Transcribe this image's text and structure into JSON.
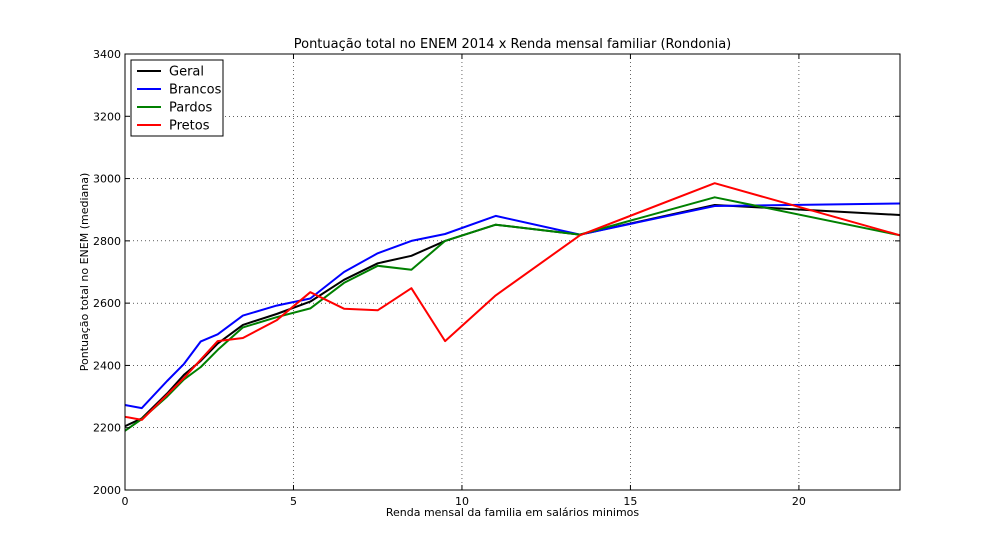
{
  "chart_data": {
    "type": "line",
    "title": "Pontuação total no ENEM 2014 x Renda mensal familiar (Rondonia)",
    "xlabel": "Renda mensal da familia em salários minimos",
    "ylabel": "Pontuação total no ENEM (mediana)",
    "xlim": [
      0,
      23
    ],
    "ylim": [
      2000,
      3400
    ],
    "xticks": [
      0,
      5,
      10,
      15,
      20
    ],
    "yticks": [
      2000,
      2200,
      2400,
      2600,
      2800,
      3000,
      3200,
      3400
    ],
    "grid": true,
    "legend_position": "top-left",
    "series": [
      {
        "name": "Geral",
        "color": "#000000",
        "x": [
          0,
          0.5,
          1.25,
          1.75,
          2.25,
          2.75,
          3.5,
          4.5,
          5.5,
          6.5,
          7.5,
          8.5,
          9.5,
          11,
          13.5,
          17.5,
          23
        ],
        "y": [
          2205,
          2230,
          2310,
          2370,
          2415,
          2470,
          2530,
          2565,
          2605,
          2675,
          2728,
          2752,
          2800,
          2852,
          2820,
          2915,
          2883
        ]
      },
      {
        "name": "Brancos",
        "color": "#0000ff",
        "x": [
          0,
          0.5,
          1.25,
          1.75,
          2.25,
          2.75,
          3.5,
          4.5,
          5.5,
          6.5,
          7.5,
          8.5,
          9.5,
          11,
          13.5,
          17.5,
          23
        ],
        "y": [
          2273,
          2263,
          2350,
          2405,
          2477,
          2500,
          2560,
          2592,
          2615,
          2700,
          2760,
          2800,
          2822,
          2880,
          2820,
          2912,
          2920
        ]
      },
      {
        "name": "Pardos",
        "color": "#008000",
        "x": [
          0,
          0.5,
          1.25,
          1.75,
          2.25,
          2.75,
          3.5,
          4.5,
          5.5,
          6.5,
          7.5,
          8.5,
          9.5,
          11,
          13.5,
          17.5,
          23
        ],
        "y": [
          2190,
          2228,
          2300,
          2355,
          2395,
          2450,
          2522,
          2555,
          2583,
          2665,
          2720,
          2707,
          2800,
          2852,
          2820,
          2940,
          2818
        ]
      },
      {
        "name": "Pretos",
        "color": "#ff0000",
        "x": [
          0,
          0.5,
          1.75,
          2.75,
          3.5,
          4.5,
          5.5,
          6.5,
          7.5,
          8.5,
          9.5,
          11,
          13.5,
          17.5,
          23
        ],
        "y": [
          2235,
          2225,
          2360,
          2478,
          2488,
          2545,
          2635,
          2582,
          2577,
          2648,
          2478,
          2625,
          2818,
          2985,
          2818
        ]
      }
    ]
  }
}
